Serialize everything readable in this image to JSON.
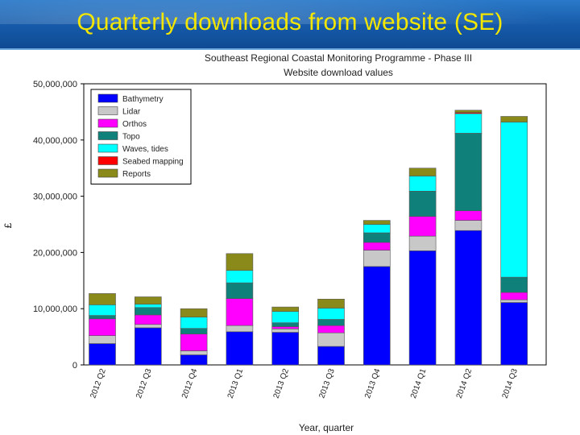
{
  "slide": {
    "title": "Quarterly downloads from website (SE)"
  },
  "chart_data": {
    "type": "bar",
    "stacked": true,
    "title": "Southeast Regional Coastal Monitoring Programme - Phase III",
    "subtitle": "Website download values",
    "xlabel": "Year, quarter",
    "ylabel": "£",
    "ylim": [
      0,
      50000000
    ],
    "yticks": [
      "0",
      "10,000,000",
      "20,000,000",
      "30,000,000",
      "40,000,000",
      "50,000,000"
    ],
    "ytick_values": [
      0,
      10000000,
      20000000,
      30000000,
      40000000,
      50000000
    ],
    "categories": [
      "2012 Q2",
      "2012 Q3",
      "2012 Q4",
      "2013 Q1",
      "2013 Q2",
      "2013 Q3",
      "2013 Q4",
      "2014 Q1",
      "2014 Q2",
      "2014 Q3"
    ],
    "legend_position": "top-left",
    "series": [
      {
        "name": "Bathymetry",
        "color": "#0000ff",
        "values": [
          3800000,
          6600000,
          1800000,
          5900000,
          5800000,
          3300000,
          17500000,
          20300000,
          23900000,
          11100000
        ]
      },
      {
        "name": "Lidar",
        "color": "#c8c8c8",
        "values": [
          1400000,
          600000,
          700000,
          1100000,
          600000,
          2400000,
          2900000,
          2600000,
          1800000,
          500000
        ]
      },
      {
        "name": "Orthos",
        "color": "#ff00ff",
        "values": [
          3000000,
          1700000,
          3000000,
          4800000,
          400000,
          1300000,
          1400000,
          3500000,
          1700000,
          1300000
        ]
      },
      {
        "name": "Topo",
        "color": "#10807a",
        "values": [
          600000,
          1300000,
          1000000,
          2800000,
          700000,
          1100000,
          1700000,
          4500000,
          13800000,
          2700000
        ]
      },
      {
        "name": "Waves, tides",
        "color": "#00ffff",
        "values": [
          1900000,
          600000,
          2000000,
          2200000,
          2000000,
          2000000,
          1500000,
          2700000,
          3500000,
          27600000
        ]
      },
      {
        "name": "Seabed mapping",
        "color": "#ff0000",
        "values": [
          0,
          0,
          0,
          0,
          0,
          0,
          0,
          0,
          200000,
          0
        ]
      },
      {
        "name": "Reports",
        "color": "#8a8a1a",
        "values": [
          2000000,
          1300000,
          1500000,
          3000000,
          800000,
          1600000,
          700000,
          1400000,
          400000,
          1000000
        ]
      }
    ]
  }
}
